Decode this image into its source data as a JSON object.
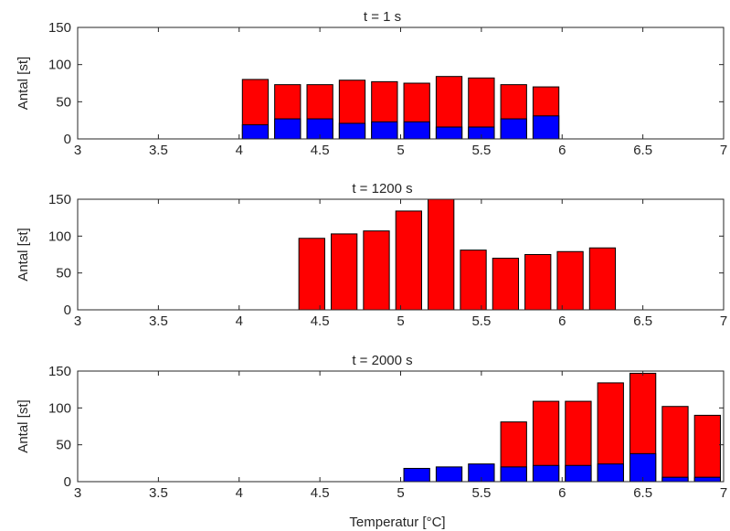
{
  "figure": {
    "xlabel": "Temperatur [°C]"
  },
  "chart_data": [
    {
      "type": "bar",
      "title": "t = 1 s",
      "xlabel": "",
      "ylabel": "Antal [st]",
      "xlim": [
        3,
        7
      ],
      "ylim": [
        0,
        150
      ],
      "xticks": [
        3,
        3.5,
        4,
        4.5,
        5,
        5.5,
        6,
        6.5,
        7
      ],
      "xtick_labels": [
        "3",
        "3.5",
        "4",
        "4.5",
        "5",
        "5.5",
        "6",
        "6.5",
        "7"
      ],
      "yticks": [
        0,
        50,
        100,
        150
      ],
      "ytick_labels": [
        "0",
        "50",
        "100",
        "150"
      ],
      "bar_width": 0.16,
      "grid": false,
      "series": [
        {
          "color": "#ff0000",
          "x": [
            4.1,
            4.3,
            4.5,
            4.7,
            4.9,
            5.1,
            5.3,
            5.5,
            5.7,
            5.9
          ],
          "values": [
            80,
            73,
            73,
            79,
            77,
            75,
            84,
            82,
            73,
            70
          ]
        },
        {
          "color": "#0000ff",
          "x": [
            4.1,
            4.3,
            4.5,
            4.7,
            4.9,
            5.1,
            5.3,
            5.5,
            5.7,
            5.9
          ],
          "values": [
            19,
            27,
            27,
            21,
            23,
            23,
            16,
            16,
            27,
            31
          ]
        }
      ]
    },
    {
      "type": "bar",
      "title": "t = 1200 s",
      "xlabel": "",
      "ylabel": "Antal [st]",
      "xlim": [
        3,
        7
      ],
      "ylim": [
        0,
        150
      ],
      "xticks": [
        3,
        3.5,
        4,
        4.5,
        5,
        5.5,
        6,
        6.5,
        7
      ],
      "xtick_labels": [
        "3",
        "3.5",
        "4",
        "4.5",
        "5",
        "5.5",
        "6",
        "6.5",
        "7"
      ],
      "yticks": [
        0,
        50,
        100,
        150
      ],
      "ytick_labels": [
        "0",
        "50",
        "100",
        "150"
      ],
      "bar_width": 0.16,
      "grid": false,
      "series": [
        {
          "color": "#ff0000",
          "x": [
            4.45,
            4.65,
            4.85,
            5.05,
            5.25,
            5.45,
            5.65,
            5.85,
            6.05,
            6.25
          ],
          "values": [
            97,
            103,
            107,
            134,
            150,
            81,
            70,
            75,
            79,
            84
          ]
        },
        {
          "color": "#0000ff",
          "x": [],
          "values": []
        }
      ]
    },
    {
      "type": "bar",
      "title": "t = 2000 s",
      "xlabel": "Temperatur [°C]",
      "ylabel": "Antal [st]",
      "xlim": [
        3,
        7
      ],
      "ylim": [
        0,
        150
      ],
      "xticks": [
        3,
        3.5,
        4,
        4.5,
        5,
        5.5,
        6,
        6.5,
        7
      ],
      "xtick_labels": [
        "3",
        "3.5",
        "4",
        "4.5",
        "5",
        "5.5",
        "6",
        "6.5",
        "7"
      ],
      "yticks": [
        0,
        50,
        100,
        150
      ],
      "ytick_labels": [
        "0",
        "50",
        "100",
        "150"
      ],
      "bar_width": 0.16,
      "grid": false,
      "series": [
        {
          "color": "#ff0000",
          "x": [
            5.1,
            5.3,
            5.5,
            5.7,
            5.9,
            6.1,
            6.3,
            6.5,
            6.7,
            6.9
          ],
          "values": [
            0,
            0,
            0,
            81,
            109,
            109,
            134,
            147,
            102,
            90
          ]
        },
        {
          "color": "#0000ff",
          "x": [
            5.1,
            5.3,
            5.5,
            5.7,
            5.9,
            6.1,
            6.3,
            6.5,
            6.7,
            6.9
          ],
          "values": [
            18,
            20,
            24,
            20,
            22,
            22,
            24,
            38,
            6,
            6
          ]
        }
      ]
    }
  ]
}
